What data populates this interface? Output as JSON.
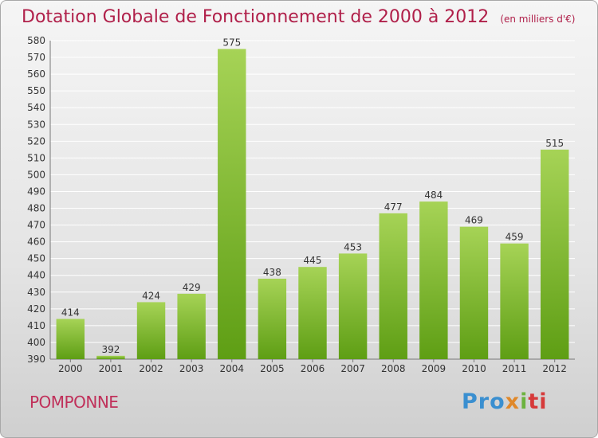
{
  "title": "Dotation Globale de Fonctionnement de 2000 à 2012",
  "subtitle": "(en milliers d'€)",
  "commune": "POMPONNE",
  "logo": {
    "p1": "Pro",
    "p2": "x",
    "p3": "i",
    "p4": "ti"
  },
  "colors": {
    "title": "#b0204a",
    "bar_top": "#a6d356",
    "bar_bottom": "#5e9e14",
    "grid": "#ffffff"
  },
  "chart_data": {
    "type": "bar",
    "categories": [
      "2000",
      "2001",
      "2002",
      "2003",
      "2004",
      "2005",
      "2006",
      "2007",
      "2008",
      "2009",
      "2010",
      "2011",
      "2012"
    ],
    "values": [
      414,
      392,
      424,
      429,
      575,
      438,
      445,
      453,
      477,
      484,
      469,
      459,
      515
    ],
    "title": "Dotation Globale de Fonctionnement de 2000 à 2012",
    "ylim": [
      390,
      580
    ],
    "yticks": [
      390,
      400,
      410,
      420,
      430,
      440,
      450,
      460,
      470,
      480,
      490,
      500,
      510,
      520,
      530,
      540,
      550,
      560,
      570,
      580
    ],
    "grid": true
  }
}
